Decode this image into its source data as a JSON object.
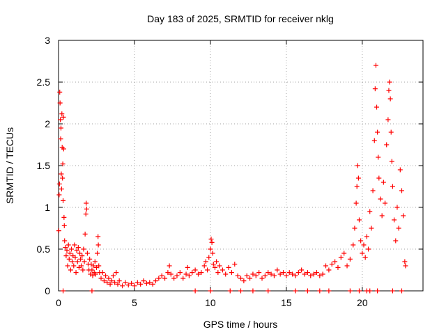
{
  "chart_data": {
    "type": "scatter",
    "title": "Day 183 of 2025, SRMTID for receiver nklg",
    "xlabel": "GPS time / hours",
    "ylabel": "SRMTID / TECUs",
    "xlim": [
      0,
      24
    ],
    "ylim": [
      0,
      3
    ],
    "grid": true,
    "marker": "+",
    "color": "#ff0000",
    "xticks": [
      0,
      5,
      10,
      15,
      20
    ],
    "xtick_labels": [
      "0",
      "5",
      "10",
      "15",
      "20"
    ],
    "yticks": [
      0,
      0.5,
      1,
      1.5,
      2,
      2.5,
      3
    ],
    "ytick_labels": [
      "0",
      "0.5",
      "1",
      "1.5",
      "2",
      "2.5",
      "3"
    ],
    "series": [
      {
        "name": "SRMTID",
        "points": [
          [
            0.02,
            0.72
          ],
          [
            0.04,
            1.15
          ],
          [
            0.06,
            1.28
          ],
          [
            0.08,
            2.38
          ],
          [
            0.1,
            2.25
          ],
          [
            0.12,
            2.05
          ],
          [
            0.14,
            1.82
          ],
          [
            0.16,
            1.95
          ],
          [
            0.18,
            1.4
          ],
          [
            0.2,
            1.22
          ],
          [
            0.22,
            2.12
          ],
          [
            0.24,
            1.72
          ],
          [
            0.26,
            1.35
          ],
          [
            0.28,
            1.52
          ],
          [
            0.3,
            1.08
          ],
          [
            0.32,
            2.08
          ],
          [
            0.34,
            1.7
          ],
          [
            0.36,
            0.88
          ],
          [
            0.38,
            0.78
          ],
          [
            0.4,
            0.6
          ],
          [
            0.45,
            0.52
          ],
          [
            0.5,
            0.42
          ],
          [
            0.55,
            0.48
          ],
          [
            0.6,
            0.3
          ],
          [
            0.65,
            0.55
          ],
          [
            0.7,
            0.38
          ],
          [
            0.75,
            0.45
          ],
          [
            0.8,
            0.25
          ],
          [
            0.85,
            0.5
          ],
          [
            0.9,
            0.35
          ],
          [
            0.95,
            0.42
          ],
          [
            1.0,
            0.3
          ],
          [
            1.05,
            0.55
          ],
          [
            1.1,
            0.4
          ],
          [
            1.15,
            0.22
          ],
          [
            1.2,
            0.48
          ],
          [
            1.25,
            0.35
          ],
          [
            1.3,
            0.52
          ],
          [
            1.35,
            0.28
          ],
          [
            1.4,
            0.45
          ],
          [
            1.45,
            0.38
          ],
          [
            1.5,
            0.3
          ],
          [
            1.55,
            0.42
          ],
          [
            1.6,
            0.25
          ],
          [
            1.65,
            0.5
          ],
          [
            1.7,
            0.35
          ],
          [
            1.75,
            0.68
          ],
          [
            1.8,
            0.92
          ],
          [
            1.82,
            1.05
          ],
          [
            1.85,
            0.98
          ],
          [
            1.9,
            0.45
          ],
          [
            1.95,
            0.32
          ],
          [
            2.0,
            0.25
          ],
          [
            2.05,
            0.38
          ],
          [
            2.1,
            0.2
          ],
          [
            2.15,
            0.32
          ],
          [
            2.2,
            0.25
          ],
          [
            2.25,
            0.18
          ],
          [
            2.3,
            0.3
          ],
          [
            2.35,
            0.22
          ],
          [
            2.4,
            0.35
          ],
          [
            2.45,
            0.2
          ],
          [
            2.5,
            0.28
          ],
          [
            2.55,
            0.45
          ],
          [
            2.6,
            0.65
          ],
          [
            2.62,
            0.55
          ],
          [
            2.65,
            0.3
          ],
          [
            2.7,
            0.22
          ],
          [
            2.8,
            0.15
          ],
          [
            2.9,
            0.22
          ],
          [
            3.0,
            0.12
          ],
          [
            3.1,
            0.18
          ],
          [
            3.2,
            0.1
          ],
          [
            3.3,
            0.15
          ],
          [
            3.4,
            0.08
          ],
          [
            3.5,
            0.12
          ],
          [
            3.6,
            0.18
          ],
          [
            3.7,
            0.1
          ],
          [
            3.8,
            0.22
          ],
          [
            3.9,
            0.08
          ],
          [
            4.0,
            0.12
          ],
          [
            4.2,
            0.06
          ],
          [
            4.4,
            0.1
          ],
          [
            4.6,
            0.07
          ],
          [
            4.8,
            0.09
          ],
          [
            5.0,
            0.06
          ],
          [
            5.2,
            0.1
          ],
          [
            5.4,
            0.08
          ],
          [
            5.6,
            0.12
          ],
          [
            5.8,
            0.09
          ],
          [
            6.0,
            0.1
          ],
          [
            6.2,
            0.08
          ],
          [
            6.4,
            0.12
          ],
          [
            6.6,
            0.15
          ],
          [
            6.8,
            0.18
          ],
          [
            7.0,
            0.15
          ],
          [
            7.2,
            0.22
          ],
          [
            7.3,
            0.3
          ],
          [
            7.4,
            0.2
          ],
          [
            7.6,
            0.15
          ],
          [
            7.8,
            0.18
          ],
          [
            8.0,
            0.22
          ],
          [
            8.2,
            0.15
          ],
          [
            8.4,
            0.2
          ],
          [
            8.5,
            0.28
          ],
          [
            8.6,
            0.18
          ],
          [
            8.8,
            0.22
          ],
          [
            9.0,
            0.25
          ],
          [
            9.2,
            0.2
          ],
          [
            9.4,
            0.22
          ],
          [
            9.6,
            0.3
          ],
          [
            9.7,
            0.35
          ],
          [
            9.8,
            0.25
          ],
          [
            9.9,
            0.4
          ],
          [
            10.0,
            0.5
          ],
          [
            10.05,
            0.62
          ],
          [
            10.1,
            0.58
          ],
          [
            10.15,
            0.45
          ],
          [
            10.2,
            0.32
          ],
          [
            10.3,
            0.28
          ],
          [
            10.4,
            0.35
          ],
          [
            10.5,
            0.22
          ],
          [
            10.6,
            0.3
          ],
          [
            10.8,
            0.25
          ],
          [
            11.0,
            0.2
          ],
          [
            11.2,
            0.28
          ],
          [
            11.4,
            0.22
          ],
          [
            11.6,
            0.32
          ],
          [
            11.8,
            0.18
          ],
          [
            12.0,
            0.15
          ],
          [
            12.2,
            0.12
          ],
          [
            12.4,
            0.18
          ],
          [
            12.6,
            0.15
          ],
          [
            12.8,
            0.2
          ],
          [
            13.0,
            0.18
          ],
          [
            13.2,
            0.22
          ],
          [
            13.4,
            0.15
          ],
          [
            13.6,
            0.18
          ],
          [
            13.8,
            0.22
          ],
          [
            14.0,
            0.2
          ],
          [
            14.2,
            0.18
          ],
          [
            14.4,
            0.25
          ],
          [
            14.6,
            0.2
          ],
          [
            14.8,
            0.22
          ],
          [
            15.0,
            0.18
          ],
          [
            15.2,
            0.22
          ],
          [
            15.4,
            0.2
          ],
          [
            15.6,
            0.18
          ],
          [
            15.8,
            0.22
          ],
          [
            16.0,
            0.25
          ],
          [
            16.2,
            0.2
          ],
          [
            16.4,
            0.22
          ],
          [
            16.6,
            0.18
          ],
          [
            16.8,
            0.2
          ],
          [
            17.0,
            0.22
          ],
          [
            17.2,
            0.18
          ],
          [
            17.4,
            0.2
          ],
          [
            17.6,
            0.3
          ],
          [
            17.8,
            0.25
          ],
          [
            18.0,
            0.32
          ],
          [
            18.2,
            0.35
          ],
          [
            18.4,
            0.28
          ],
          [
            18.6,
            0.4
          ],
          [
            18.8,
            0.45
          ],
          [
            19.0,
            0.3
          ],
          [
            19.2,
            0.38
          ],
          [
            19.4,
            0.55
          ],
          [
            19.5,
            0.75
          ],
          [
            19.6,
            1.05
          ],
          [
            19.65,
            1.25
          ],
          [
            19.7,
            1.5
          ],
          [
            19.75,
            1.35
          ],
          [
            19.8,
            0.85
          ],
          [
            19.9,
            0.6
          ],
          [
            20.0,
            0.45
          ],
          [
            20.1,
            0.55
          ],
          [
            20.2,
            0.4
          ],
          [
            20.3,
            0.65
          ],
          [
            20.4,
            0.5
          ],
          [
            20.5,
            0.95
          ],
          [
            20.6,
            0.75
          ],
          [
            20.7,
            1.2
          ],
          [
            20.8,
            1.8
          ],
          [
            20.85,
            2.42
          ],
          [
            20.9,
            2.7
          ],
          [
            20.95,
            2.2
          ],
          [
            21.0,
            1.9
          ],
          [
            21.05,
            1.6
          ],
          [
            21.1,
            1.35
          ],
          [
            21.2,
            1.1
          ],
          [
            21.3,
            0.9
          ],
          [
            21.4,
            1.3
          ],
          [
            21.5,
            1.05
          ],
          [
            21.6,
            1.75
          ],
          [
            21.7,
            2.05
          ],
          [
            21.75,
            2.4
          ],
          [
            21.8,
            2.5
          ],
          [
            21.85,
            2.3
          ],
          [
            21.9,
            1.9
          ],
          [
            21.95,
            1.55
          ],
          [
            22.0,
            1.25
          ],
          [
            22.1,
            0.85
          ],
          [
            22.2,
            0.6
          ],
          [
            22.3,
            1.0
          ],
          [
            22.4,
            0.75
          ],
          [
            22.5,
            1.45
          ],
          [
            22.6,
            1.2
          ],
          [
            22.7,
            0.9
          ],
          [
            22.8,
            0.35
          ],
          [
            22.85,
            0.3
          ],
          [
            0.3,
            0.0
          ],
          [
            2.2,
            0.0
          ],
          [
            9.0,
            0.0
          ],
          [
            10.0,
            0.0
          ],
          [
            11.3,
            0.0
          ],
          [
            12.0,
            0.0
          ],
          [
            12.8,
            0.0
          ],
          [
            13.8,
            0.0
          ],
          [
            15.6,
            0.0
          ],
          [
            16.4,
            0.0
          ],
          [
            17.2,
            0.0
          ],
          [
            17.8,
            0.0
          ],
          [
            19.2,
            0.0
          ],
          [
            19.8,
            0.0
          ],
          [
            20.3,
            0.0
          ],
          [
            20.5,
            0.0
          ],
          [
            21.0,
            0.0
          ],
          [
            22.0,
            0.0
          ],
          [
            22.6,
            0.0
          ]
        ]
      }
    ]
  }
}
